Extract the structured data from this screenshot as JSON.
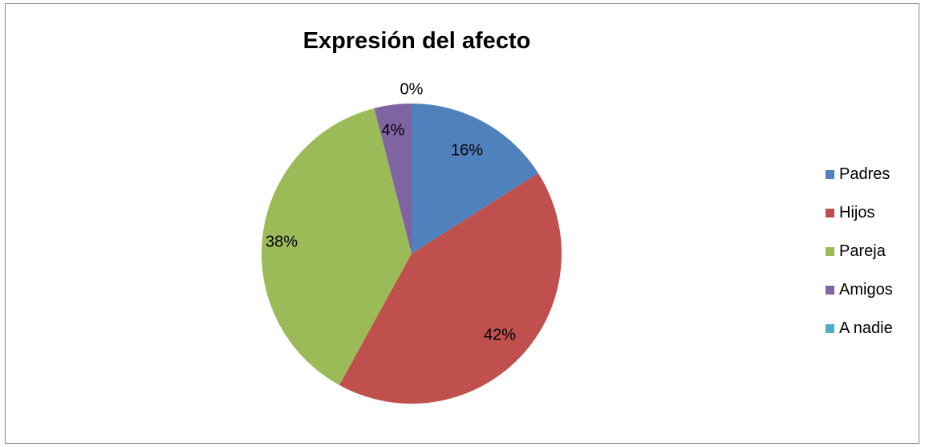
{
  "chart_data": {
    "type": "pie",
    "title": "Expresión del afecto",
    "categories": [
      "Padres",
      "Hijos",
      "Pareja",
      "Amigos",
      "A nadie"
    ],
    "values": [
      16,
      42,
      38,
      4,
      0
    ],
    "data_labels": [
      "16%",
      "42%",
      "38%",
      "4%",
      "0%"
    ],
    "colors": [
      "#4F81BD",
      "#C0504D",
      "#9BBB59",
      "#8064A2",
      "#4BACC6"
    ],
    "legend_position": "right"
  }
}
